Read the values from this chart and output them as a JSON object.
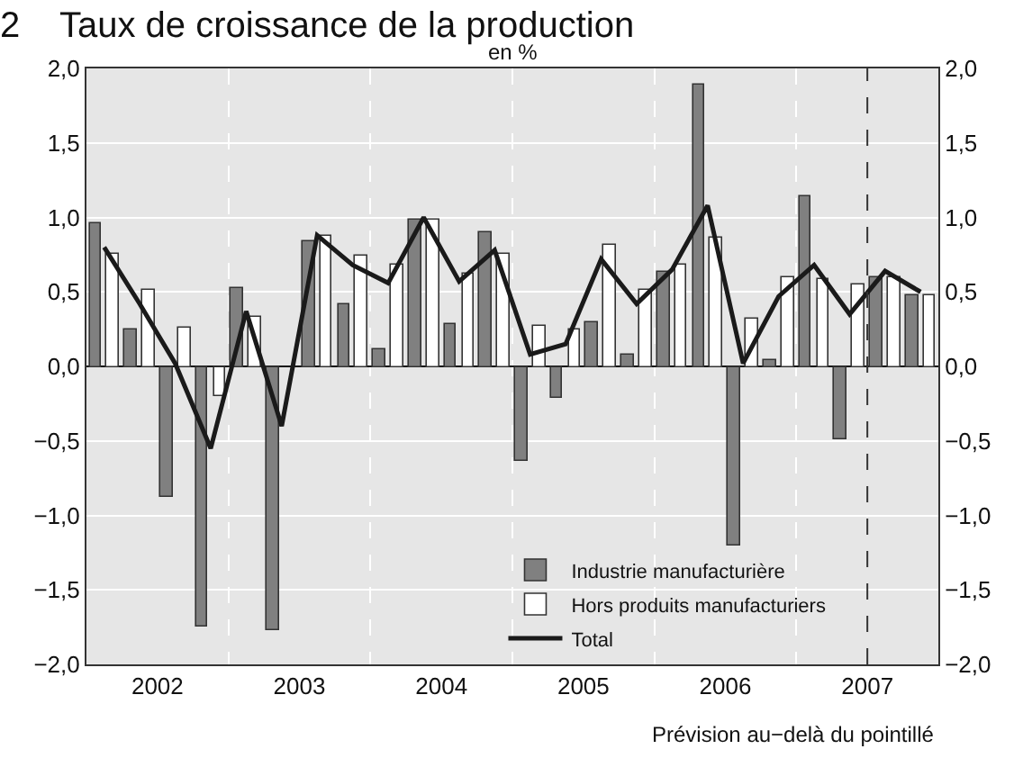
{
  "chart_data": {
    "type": "bar",
    "title": "2    Taux de croissance de la production",
    "subtitle": "en %",
    "x": [
      2002.125,
      2002.375,
      2002.625,
      2002.875,
      2003.125,
      2003.375,
      2003.625,
      2003.875,
      2004.125,
      2004.375,
      2004.625,
      2004.875,
      2005.125,
      2005.375,
      2005.625,
      2005.875,
      2006.125,
      2006.375,
      2006.625,
      2006.875,
      2007.125,
      2007.375,
      2007.625,
      2007.875
    ],
    "series": [
      {
        "name": "Industrie manufacturière",
        "color": "#808080",
        "values": [
          0.96,
          0.25,
          -0.88,
          -1.75,
          0.52,
          -1.77,
          0.84,
          0.42,
          0.11,
          0.98,
          0.29,
          0.9,
          -0.63,
          -0.21,
          0.3,
          0.08,
          0.64,
          1.89,
          -1.2,
          0.04,
          1.14,
          -0.49,
          0.6,
          0.48
        ]
      },
      {
        "name": "Hors produits manufacturiers",
        "color": "#ffffff",
        "values": [
          0.75,
          0.51,
          0.26,
          -0.2,
          0.33,
          null,
          0.88,
          0.74,
          0.68,
          0.99,
          0.62,
          0.76,
          0.27,
          0.25,
          0.82,
          0.51,
          0.68,
          0.86,
          0.32,
          0.6,
          0.59,
          0.55,
          0.6,
          0.48
        ]
      },
      {
        "name": "Total",
        "type": "line",
        "color": "#1a1a1a",
        "values": [
          0.8,
          0.42,
          0.02,
          -0.55,
          0.37,
          -0.4,
          0.88,
          0.68,
          0.56,
          1.0,
          0.57,
          0.78,
          0.08,
          0.15,
          0.72,
          0.42,
          0.65,
          1.08,
          0.02,
          0.47,
          0.68,
          0.35,
          0.64,
          0.5
        ]
      }
    ],
    "xlim": [
      2002,
      2008
    ],
    "xticks": [
      {
        "value": 2002.5,
        "label": "2002"
      },
      {
        "value": 2003,
        "label": null
      },
      {
        "value": 2003.5,
        "label": "2003"
      },
      {
        "value": 2004,
        "label": null
      },
      {
        "value": 2004.5,
        "label": "2004"
      },
      {
        "value": 2005,
        "label": null
      },
      {
        "value": 2005.5,
        "label": "2005"
      },
      {
        "value": 2006,
        "label": null
      },
      {
        "value": 2006.5,
        "label": "2006"
      },
      {
        "value": 2007,
        "label": null
      },
      {
        "value": 2007.5,
        "label": "2007"
      }
    ],
    "ylim": [
      -2,
      2
    ],
    "yticks": [
      {
        "value": -2,
        "label": "−2,0"
      },
      {
        "value": -1.5,
        "label": "−1,5"
      },
      {
        "value": -1,
        "label": "−1,0"
      },
      {
        "value": -0.5,
        "label": "−0,5"
      },
      {
        "value": 0,
        "label": "0,0"
      },
      {
        "value": 0.5,
        "label": "0,5"
      },
      {
        "value": 1,
        "label": "1,0"
      },
      {
        "value": 1.5,
        "label": "1,5"
      },
      {
        "value": 2,
        "label": "2,0"
      }
    ],
    "y2lim": [
      -2,
      2
    ],
    "y2ticks": [
      {
        "value": -2,
        "label": "−2,0"
      },
      {
        "value": -1.5,
        "label": "−1,5"
      },
      {
        "value": -1,
        "label": "−1,0"
      },
      {
        "value": -0.5,
        "label": "−0,5"
      },
      {
        "value": 0,
        "label": "0,0"
      },
      {
        "value": 0.5,
        "label": "0,5"
      },
      {
        "value": 1,
        "label": "1,0"
      },
      {
        "value": 1.5,
        "label": "1,5"
      },
      {
        "value": 2,
        "label": "2,0"
      }
    ],
    "ref_lines": [
      {
        "axis": "x",
        "value": 2007.5,
        "color": "#333333",
        "line_style": "dashed"
      }
    ],
    "annotations": [
      "Prévision au−delà du pointillé"
    ],
    "grid": true,
    "legend": "bottom right",
    "marker": "none",
    "line_style": "solid"
  }
}
